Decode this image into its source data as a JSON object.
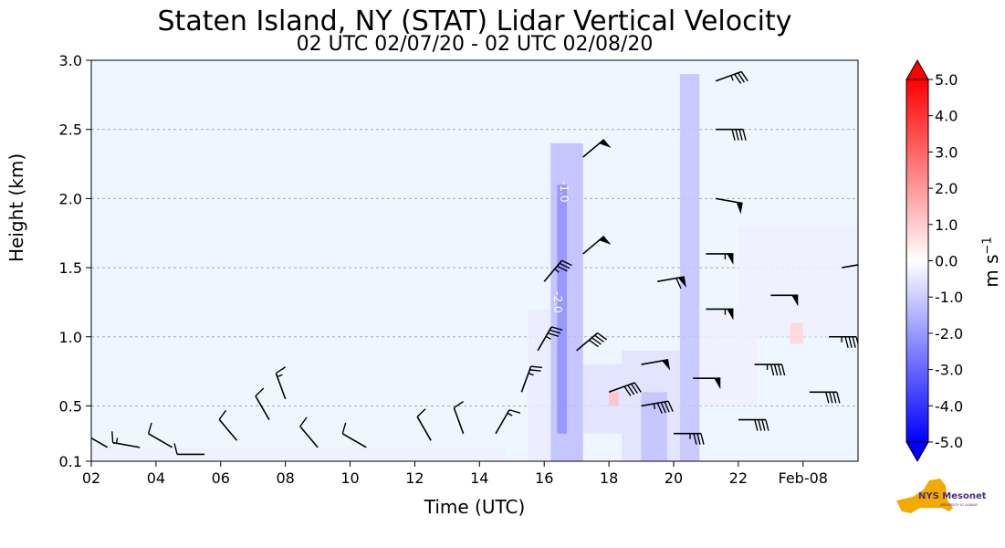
{
  "figure": {
    "title": "Staten Island, NY (STAT) Lidar Vertical Velocity",
    "subtitle": "02 UTC 02/07/20 - 02 UTC 02/08/20",
    "logo_text": "NYS Mesonet",
    "logo_subtext": "UNIVERSITY AT ALBANY"
  },
  "chart_data": {
    "type": "heatmap",
    "title": "Staten Island, NY (STAT) Lidar Vertical Velocity",
    "subtitle": "02 UTC 02/07/20 - 02 UTC 02/08/20",
    "xlabel": "Time (UTC)",
    "ylabel": "Height (km)",
    "xlim": [
      2,
      25.7
    ],
    "ylim": [
      0.1,
      3.0
    ],
    "x_ticks": [
      2,
      4,
      6,
      8,
      10,
      12,
      14,
      16,
      18,
      20,
      22,
      24
    ],
    "x_tick_labels": [
      "02",
      "04",
      "06",
      "08",
      "10",
      "12",
      "14",
      "16",
      "18",
      "20",
      "22",
      "Feb-08"
    ],
    "y_ticks": [
      0.1,
      0.5,
      1.0,
      1.5,
      2.0,
      2.5,
      3.0
    ],
    "y_tick_labels": [
      "0.1",
      "0.5",
      "1.0",
      "1.5",
      "2.0",
      "2.5",
      "3.0"
    ],
    "grid": "horizontal dashed",
    "background_color": "#eef6ff",
    "colorbar": {
      "label": "m s",
      "label_superscript": "−1",
      "min": -5.0,
      "max": 5.0,
      "ticks": [
        5.0,
        4.0,
        3.0,
        2.0,
        1.0,
        0.0,
        -1.0,
        -2.0,
        -3.0,
        -4.0,
        -5.0
      ],
      "tick_labels": [
        "5.0",
        "4.0",
        "3.0",
        "2.0",
        "1.0",
        "0.0",
        "-1.0",
        "-2.0",
        "-3.0",
        "-4.0",
        "-5.0"
      ],
      "colors": {
        "negative": "#0000ff",
        "zero": "#ffffff",
        "positive": "#ff0000"
      }
    },
    "velocity_regions": [
      {
        "x0": 2.0,
        "x1": 14.8,
        "y0": 0.1,
        "y1": 0.2,
        "v": -0.3
      },
      {
        "x0": 15.5,
        "x1": 16.2,
        "y0": 0.1,
        "y1": 1.2,
        "v": -0.4
      },
      {
        "x0": 16.2,
        "x1": 17.2,
        "y0": 0.1,
        "y1": 2.4,
        "v": -1.3
      },
      {
        "x0": 16.4,
        "x1": 16.7,
        "y0": 0.3,
        "y1": 2.1,
        "v": -2.2
      },
      {
        "x0": 17.2,
        "x1": 18.4,
        "y0": 0.3,
        "y1": 0.8,
        "v": -0.6
      },
      {
        "x0": 18.4,
        "x1": 20.2,
        "y0": 0.1,
        "y1": 0.9,
        "v": -0.6
      },
      {
        "x0": 19.0,
        "x1": 19.8,
        "y0": 0.1,
        "y1": 0.6,
        "v": -1.2
      },
      {
        "x0": 20.2,
        "x1": 20.8,
        "y0": 0.1,
        "y1": 2.9,
        "v": -1.2
      },
      {
        "x0": 20.8,
        "x1": 22.6,
        "y0": 0.5,
        "y1": 1.2,
        "v": -0.3
      },
      {
        "x0": 22.0,
        "x1": 25.7,
        "y0": 1.0,
        "y1": 1.8,
        "v": -0.3
      },
      {
        "x0": 18.0,
        "x1": 18.3,
        "y0": 0.5,
        "y1": 0.6,
        "v": 1.2
      },
      {
        "x0": 23.6,
        "x1": 24.0,
        "y0": 0.95,
        "y1": 1.1,
        "v": 0.8
      }
    ],
    "contour_labels": [
      {
        "x": 16.5,
        "y": 2.05,
        "text": "-1.0"
      },
      {
        "x": 16.3,
        "y": 1.25,
        "text": "-2.0"
      }
    ],
    "wind_barbs": [
      {
        "x": 2.5,
        "y": 0.2,
        "dir": 300,
        "speed": 15
      },
      {
        "x": 3.5,
        "y": 0.2,
        "dir": 280,
        "speed": 15
      },
      {
        "x": 4.5,
        "y": 0.2,
        "dir": 300,
        "speed": 10
      },
      {
        "x": 5.5,
        "y": 0.15,
        "dir": 270,
        "speed": 10
      },
      {
        "x": 6.5,
        "y": 0.25,
        "dir": 320,
        "speed": 10
      },
      {
        "x": 7.5,
        "y": 0.4,
        "dir": 330,
        "speed": 10
      },
      {
        "x": 8.0,
        "y": 0.55,
        "dir": 340,
        "speed": 15
      },
      {
        "x": 9.0,
        "y": 0.2,
        "dir": 320,
        "speed": 10
      },
      {
        "x": 10.5,
        "y": 0.2,
        "dir": 300,
        "speed": 10
      },
      {
        "x": 12.5,
        "y": 0.25,
        "dir": 330,
        "speed": 10
      },
      {
        "x": 13.5,
        "y": 0.3,
        "dir": 340,
        "speed": 10
      },
      {
        "x": 14.5,
        "y": 0.3,
        "dir": 30,
        "speed": 15
      },
      {
        "x": 15.3,
        "y": 0.6,
        "dir": 20,
        "speed": 25
      },
      {
        "x": 15.8,
        "y": 0.9,
        "dir": 30,
        "speed": 35
      },
      {
        "x": 16.0,
        "y": 1.4,
        "dir": 40,
        "speed": 35
      },
      {
        "x": 17.0,
        "y": 0.9,
        "dir": 50,
        "speed": 40
      },
      {
        "x": 17.2,
        "y": 1.6,
        "dir": 50,
        "speed": 50
      },
      {
        "x": 17.2,
        "y": 2.3,
        "dir": 50,
        "speed": 50
      },
      {
        "x": 18.0,
        "y": 0.6,
        "dir": 70,
        "speed": 40
      },
      {
        "x": 19.0,
        "y": 0.5,
        "dir": 80,
        "speed": 45
      },
      {
        "x": 19.0,
        "y": 0.8,
        "dir": 80,
        "speed": 50
      },
      {
        "x": 19.5,
        "y": 1.4,
        "dir": 80,
        "speed": 60
      },
      {
        "x": 20.0,
        "y": 0.3,
        "dir": 90,
        "speed": 35
      },
      {
        "x": 20.6,
        "y": 0.7,
        "dir": 90,
        "speed": 50
      },
      {
        "x": 21.0,
        "y": 1.2,
        "dir": 90,
        "speed": 55
      },
      {
        "x": 21.0,
        "y": 1.6,
        "dir": 90,
        "speed": 55
      },
      {
        "x": 21.3,
        "y": 2.0,
        "dir": 100,
        "speed": 50
      },
      {
        "x": 21.3,
        "y": 2.5,
        "dir": 90,
        "speed": 40
      },
      {
        "x": 21.3,
        "y": 2.85,
        "dir": 70,
        "speed": 35
      },
      {
        "x": 22.0,
        "y": 0.4,
        "dir": 90,
        "speed": 40
      },
      {
        "x": 22.5,
        "y": 0.8,
        "dir": 90,
        "speed": 45
      },
      {
        "x": 23.0,
        "y": 1.3,
        "dir": 90,
        "speed": 50
      },
      {
        "x": 24.2,
        "y": 0.6,
        "dir": 90,
        "speed": 40
      },
      {
        "x": 24.8,
        "y": 1.0,
        "dir": 90,
        "speed": 45
      },
      {
        "x": 25.2,
        "y": 1.5,
        "dir": 80,
        "speed": 30
      }
    ]
  }
}
